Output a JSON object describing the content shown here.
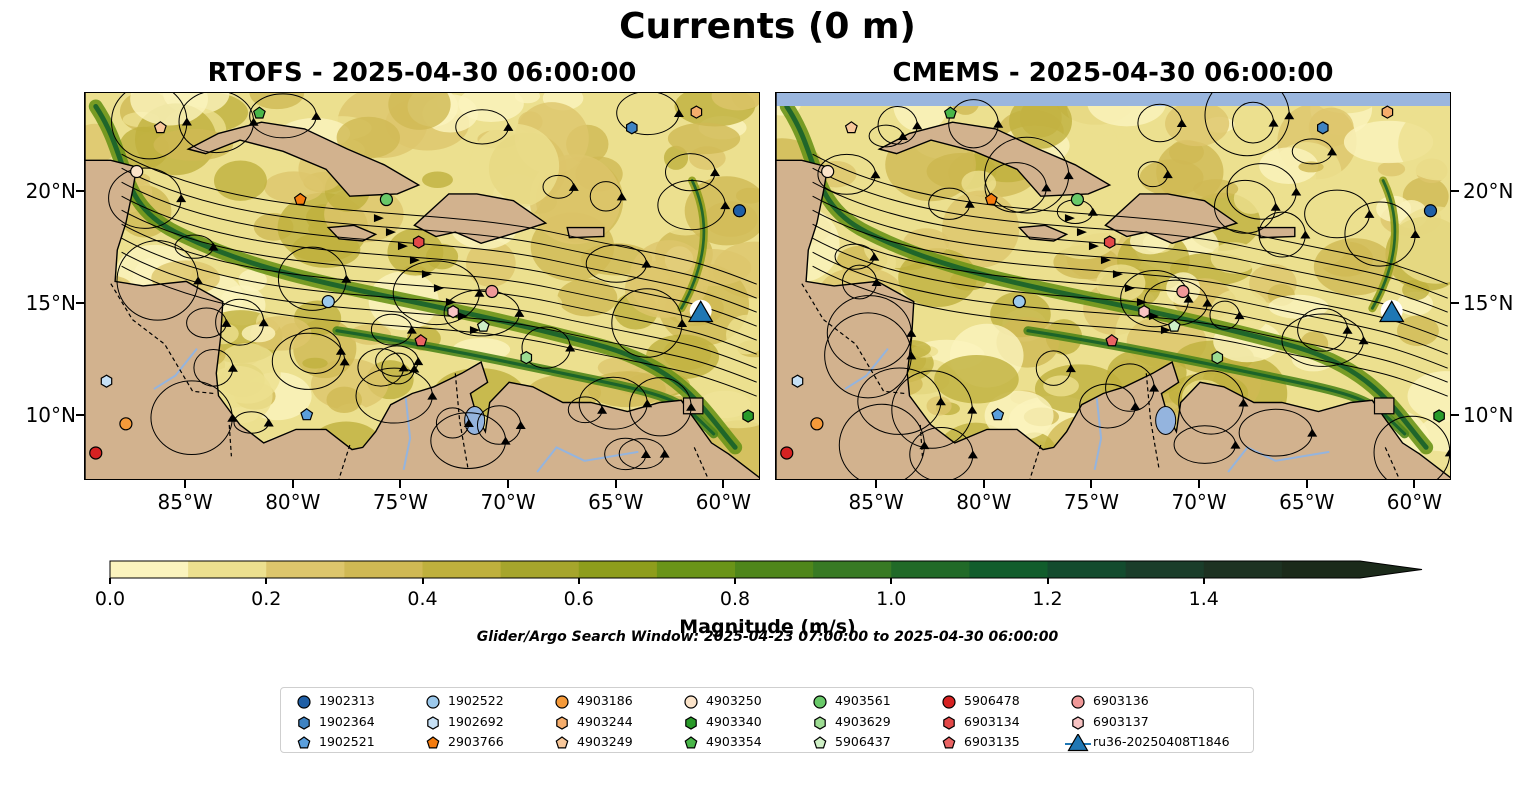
{
  "figure": {
    "suptitle": "Currents (0 m)",
    "window_note": "Glider/Argo Search Window: 2025-04-23 07:00:00 to 2025-04-30 06:00:00"
  },
  "chart_data": [
    {
      "type": "heatmap",
      "title": "RTOFS - 2025-04-30 06:00:00",
      "x_ticks": [
        "85°W",
        "80°W",
        "75°W",
        "70°W",
        "65°W",
        "60°W"
      ],
      "y_ticks": [
        "20°N",
        "15°N",
        "10°N"
      ],
      "xlim": [
        -89.7,
        -58.3
      ],
      "ylim": [
        7.1,
        24.4
      ],
      "field": "current magnitude with streamlines"
    },
    {
      "type": "heatmap",
      "title": "CMEMS - 2025-04-30 06:00:00",
      "x_ticks": [
        "85°W",
        "80°W",
        "75°W",
        "70°W",
        "65°W",
        "60°W"
      ],
      "y_ticks": [
        "20°N",
        "15°N",
        "10°N"
      ],
      "xlim": [
        -89.7,
        -58.3
      ],
      "ylim": [
        7.1,
        24.4
      ],
      "field": "current magnitude with streamlines"
    }
  ],
  "colorbar": {
    "label": "Magnitude (m/s)",
    "min": 0.0,
    "max": 1.6,
    "extend": "max",
    "ticks": [
      "0.0",
      "0.2",
      "0.4",
      "0.6",
      "0.8",
      "1.0",
      "1.2",
      "1.4"
    ],
    "tick_values": [
      0.0,
      0.2,
      0.4,
      0.6,
      0.8,
      1.0,
      1.2,
      1.4
    ],
    "colors": [
      "#fbf4be",
      "#ece08f",
      "#ddc66c",
      "#d0b954",
      "#bfb03d",
      "#a6a52c",
      "#8e9d1c",
      "#6a9418",
      "#4f861b",
      "#387a24",
      "#216a28",
      "#115d2c",
      "#134b2e",
      "#1a3d2a",
      "#1d3222",
      "#1b2a1a"
    ]
  },
  "legend": {
    "items": [
      {
        "id": "1902313",
        "marker": "circle",
        "color": "#1f5fa6"
      },
      {
        "id": "1902364",
        "marker": "hexagon",
        "color": "#3f83c2"
      },
      {
        "id": "1902521",
        "marker": "pentagon",
        "color": "#5b9fdc"
      },
      {
        "id": "1902522",
        "marker": "circle",
        "color": "#9cc9ec"
      },
      {
        "id": "1902692",
        "marker": "hexagon",
        "color": "#c6e0f5"
      },
      {
        "id": "2903766",
        "marker": "pentagon",
        "color": "#f57c0f"
      },
      {
        "id": "4903186",
        "marker": "circle",
        "color": "#f59a3a"
      },
      {
        "id": "4903244",
        "marker": "hexagon",
        "color": "#f5ad6c"
      },
      {
        "id": "4903249",
        "marker": "pentagon",
        "color": "#f8c89b"
      },
      {
        "id": "4903250",
        "marker": "circle",
        "color": "#fbe3c9"
      },
      {
        "id": "4903340",
        "marker": "hexagon",
        "color": "#2a9a2a"
      },
      {
        "id": "4903354",
        "marker": "pentagon",
        "color": "#49b649"
      },
      {
        "id": "4903561",
        "marker": "circle",
        "color": "#69c969"
      },
      {
        "id": "4903629",
        "marker": "hexagon",
        "color": "#9ddc92"
      },
      {
        "id": "5906437",
        "marker": "pentagon",
        "color": "#cff0c6"
      },
      {
        "id": "5906478",
        "marker": "circle",
        "color": "#d62222"
      },
      {
        "id": "6903134",
        "marker": "hexagon",
        "color": "#e34848"
      },
      {
        "id": "6903135",
        "marker": "pentagon",
        "color": "#ea6464"
      },
      {
        "id": "6903136",
        "marker": "circle",
        "color": "#f09898"
      },
      {
        "id": "6903137",
        "marker": "hexagon",
        "color": "#f8c3c3"
      },
      {
        "id": "ru36-20250408T1846",
        "marker": "triangle",
        "color": "#1f77b4"
      }
    ]
  },
  "floats": [
    {
      "id": "1902313",
      "lon": -59.3,
      "lat": 19.15
    },
    {
      "id": "1902364",
      "lon": -64.3,
      "lat": 22.85
    },
    {
      "id": "1902521",
      "lon": -79.4,
      "lat": 10.05
    },
    {
      "id": "1902522",
      "lon": -78.4,
      "lat": 15.1
    },
    {
      "id": "1902692",
      "lon": -88.7,
      "lat": 11.55
    },
    {
      "id": "2903766",
      "lon": -79.7,
      "lat": 19.65
    },
    {
      "id": "4903186",
      "lon": -87.8,
      "lat": 9.65
    },
    {
      "id": "4903244",
      "lon": -61.3,
      "lat": 23.55
    },
    {
      "id": "4903249",
      "lon": -86.2,
      "lat": 22.85
    },
    {
      "id": "4903250",
      "lon": -87.3,
      "lat": 20.9
    },
    {
      "id": "4903340",
      "lon": -58.9,
      "lat": 10.0
    },
    {
      "id": "4903354",
      "lon": -81.6,
      "lat": 23.5
    },
    {
      "id": "4903561",
      "lon": -75.7,
      "lat": 19.65
    },
    {
      "id": "4903629",
      "lon": -69.2,
      "lat": 12.6
    },
    {
      "id": "5906437",
      "lon": -71.2,
      "lat": 14.0
    },
    {
      "id": "5906478",
      "lon": -89.2,
      "lat": 8.35
    },
    {
      "id": "6903134",
      "lon": -74.2,
      "lat": 17.75
    },
    {
      "id": "6903135",
      "lon": -74.1,
      "lat": 13.35
    },
    {
      "id": "6903136",
      "lon": -70.8,
      "lat": 15.55
    },
    {
      "id": "6903137",
      "lon": -72.6,
      "lat": 14.65
    },
    {
      "id": "ru36-20250408T1846",
      "lon": -61.1,
      "lat": 14.6
    }
  ]
}
